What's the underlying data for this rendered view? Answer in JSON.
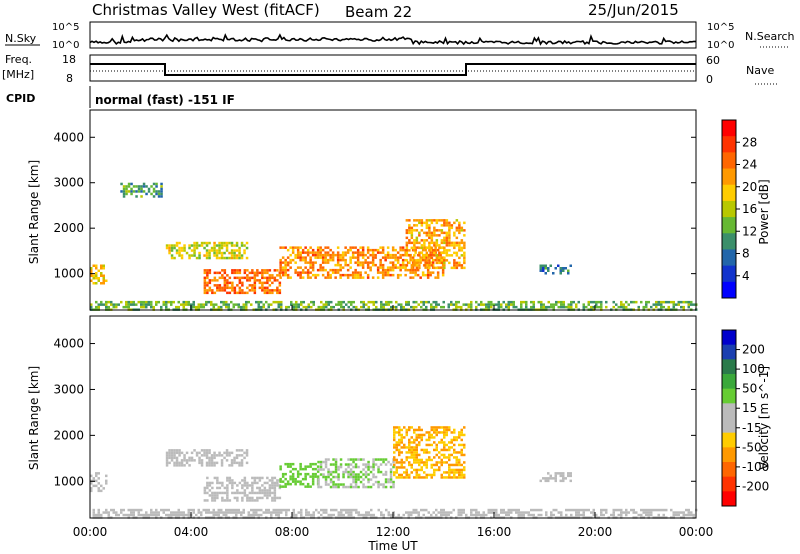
{
  "header": {
    "title": "Christmas Valley West (fitACF)",
    "beam": "Beam 22",
    "date": "25/Jun/2015"
  },
  "top_panels": {
    "nsky_label": "N.Sky",
    "nsearch_label": "N.Search",
    "nsky_ticks": [
      "10^5",
      "10^0"
    ],
    "nsky_right_ticks": [
      "10^5",
      "10^0"
    ],
    "freq_label": "Freq.",
    "freq_unit": "[MHz]",
    "freq_ticks": [
      "18",
      "8"
    ],
    "nave_label": "Nave",
    "nave_ticks": [
      "60",
      "0"
    ],
    "cpid_label": "CPID",
    "cpid_text": "normal (fast) -151 IF"
  },
  "x_axis": {
    "label": "Time UT",
    "ticks": [
      "00:00",
      "04:00",
      "08:00",
      "12:00",
      "16:00",
      "20:00",
      "00:00"
    ]
  },
  "power_colorbar": {
    "label": "Power [dB]",
    "ticks": [
      "28",
      "24",
      "20",
      "16",
      "12",
      "8",
      "4"
    ],
    "colors": [
      "#ff0000",
      "#ff3300",
      "#ff6600",
      "#ff9900",
      "#ffcc00",
      "#b8c800",
      "#66b833",
      "#3b8f6a",
      "#2266aa",
      "#1133cc",
      "#0000ff"
    ]
  },
  "velocity_colorbar": {
    "label": "Velocity [m s^-1]",
    "ticks": [
      "200",
      "100",
      "50",
      "15",
      "-15",
      "-50",
      "-100",
      "-200"
    ],
    "colors": [
      "#0000cc",
      "#1a3fb0",
      "#2a7a4a",
      "#3aa83a",
      "#66cc33",
      "#bbbbbb",
      "#bbbbbb",
      "#ffcc00",
      "#ff9900",
      "#ff6600",
      "#ff3300",
      "#ff0000"
    ]
  },
  "chart_data": [
    {
      "type": "heatmap",
      "title": "Power",
      "xlabel": "Time UT",
      "ylabel": "Slant Range [km]",
      "xlim": [
        0,
        24
      ],
      "ylim": [
        200,
        4600
      ],
      "yticks": [
        "4000",
        "3000",
        "2000",
        "1000"
      ],
      "colorbar": "Power [dB]",
      "regions": [
        {
          "t0": 0.0,
          "t1": 0.6,
          "r0": 800,
          "r1": 1200,
          "value": 18
        },
        {
          "t0": 1.2,
          "t1": 2.8,
          "r0": 2700,
          "r1": 3000,
          "value": 10
        },
        {
          "t0": 3.0,
          "t1": 6.2,
          "r0": 1350,
          "r1": 1700,
          "value": 16
        },
        {
          "t0": 4.5,
          "t1": 7.5,
          "r0": 600,
          "r1": 1100,
          "value": 24
        },
        {
          "t0": 7.5,
          "t1": 14.0,
          "r0": 900,
          "r1": 1600,
          "value": 22
        },
        {
          "t0": 12.5,
          "t1": 14.8,
          "r0": 1100,
          "r1": 2200,
          "value": 20
        },
        {
          "t0": 17.8,
          "t1": 19.0,
          "r0": 1000,
          "r1": 1200,
          "value": 8
        },
        {
          "t0": 0.0,
          "t1": 24.0,
          "r0": 200,
          "r1": 400,
          "value": 12
        }
      ]
    },
    {
      "type": "heatmap",
      "title": "Velocity",
      "xlabel": "Time UT",
      "ylabel": "Slant Range [km]",
      "xlim": [
        0,
        24
      ],
      "ylim": [
        200,
        4600
      ],
      "yticks": [
        "4000",
        "3000",
        "2000",
        "1000"
      ],
      "colorbar": "Velocity [m s^-1]",
      "regions": [
        {
          "t0": 0.0,
          "t1": 0.6,
          "r0": 800,
          "r1": 1200,
          "value": 0
        },
        {
          "t0": 3.0,
          "t1": 6.2,
          "r0": 1350,
          "r1": 1700,
          "value": 0
        },
        {
          "t0": 4.5,
          "t1": 7.5,
          "r0": 600,
          "r1": 1100,
          "value": 30
        },
        {
          "t0": 7.5,
          "t1": 9.0,
          "r0": 900,
          "r1": 1400,
          "value": 60
        },
        {
          "t0": 9.0,
          "t1": 12.0,
          "r0": 900,
          "r1": 1500,
          "value": 40
        },
        {
          "t0": 12.0,
          "t1": 14.8,
          "r0": 1100,
          "r1": 2200,
          "value": -80
        },
        {
          "t0": 17.8,
          "t1": 19.0,
          "r0": 1000,
          "r1": 1200,
          "value": 0
        },
        {
          "t0": 0.0,
          "t1": 24.0,
          "r0": 200,
          "r1": 400,
          "value": -30
        }
      ]
    }
  ]
}
